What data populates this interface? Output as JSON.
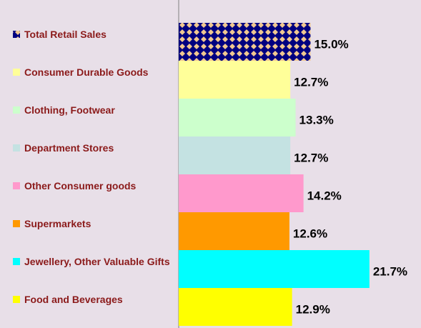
{
  "chart_data": {
    "type": "bar",
    "orientation": "horizontal",
    "categories": [
      "Total Retail Sales",
      "Consumer Durable Goods",
      "Clothing, Footwear",
      "Department Stores",
      "Other Consumer goods",
      "Supermarkets",
      "Jewellery, Other Valuable Gifts",
      "Food and Beverages"
    ],
    "values": [
      15.0,
      12.7,
      13.3,
      12.7,
      14.2,
      12.6,
      21.7,
      12.9
    ],
    "value_labels": [
      "15.0%",
      "12.7%",
      "13.3%",
      "12.7%",
      "14.2%",
      "12.6%",
      "21.7%",
      "12.9%"
    ],
    "colors": [
      "#000080",
      "#ffff99",
      "#ccffcc",
      "#c4e2e2",
      "#ff99cc",
      "#ff9900",
      "#00ffff",
      "#ffff00"
    ],
    "xlim": [
      0,
      27
    ]
  }
}
